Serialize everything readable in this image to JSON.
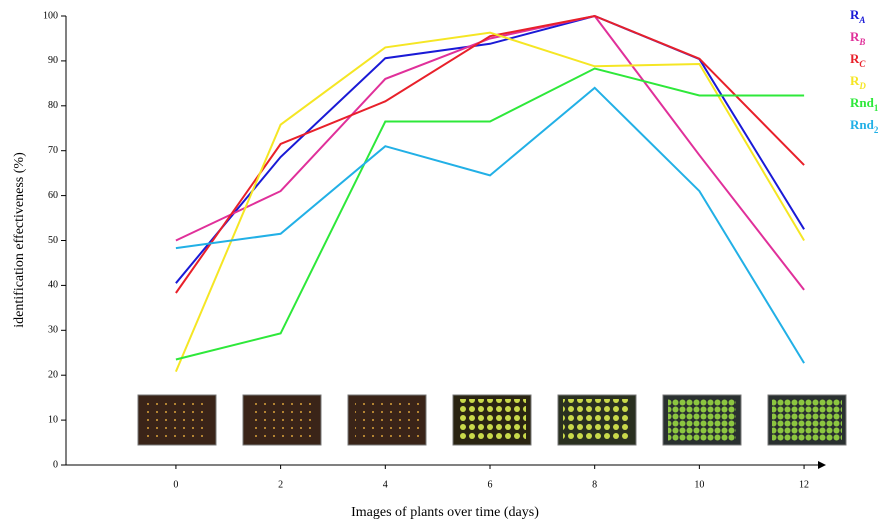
{
  "chart_data": {
    "type": "line",
    "x_label": "Images of plants over time (days)",
    "y_label": "identification effectiveness (%)",
    "x": [
      0,
      2,
      4,
      6,
      8,
      10,
      12
    ],
    "xlim": [
      -2.1,
      12.4
    ],
    "xticks": [
      0,
      2,
      4,
      6,
      8,
      10,
      12
    ],
    "ylim": [
      0,
      100
    ],
    "yticks": [
      0,
      10,
      20,
      30,
      40,
      50,
      60,
      70,
      80,
      90,
      100
    ],
    "series": [
      {
        "name": "RA",
        "color": "#1a1ad6",
        "values": [
          40.5,
          68.6,
          90.6,
          93.8,
          100,
          90.4,
          52.5
        ]
      },
      {
        "name": "RB",
        "color": "#e0309a",
        "values": [
          50,
          61,
          86,
          95,
          100,
          69,
          39
        ]
      },
      {
        "name": "RC",
        "color": "#e8202a",
        "values": [
          38.3,
          71.5,
          81,
          95.5,
          100,
          90.5,
          66.8
        ]
      },
      {
        "name": "RD",
        "color": "#f5e624",
        "values": [
          20.8,
          75.8,
          93,
          96.3,
          88.8,
          89.3,
          50
        ]
      },
      {
        "name": "Rnd1",
        "color": "#2ee83a",
        "values": [
          23.5,
          29.3,
          76.5,
          76.5,
          88.3,
          82.3,
          82.3
        ]
      },
      {
        "name": "Rnd2",
        "color": "#22b0e6",
        "values": [
          48.3,
          51.5,
          71,
          64.5,
          84,
          61,
          22.7
        ]
      }
    ]
  }
}
